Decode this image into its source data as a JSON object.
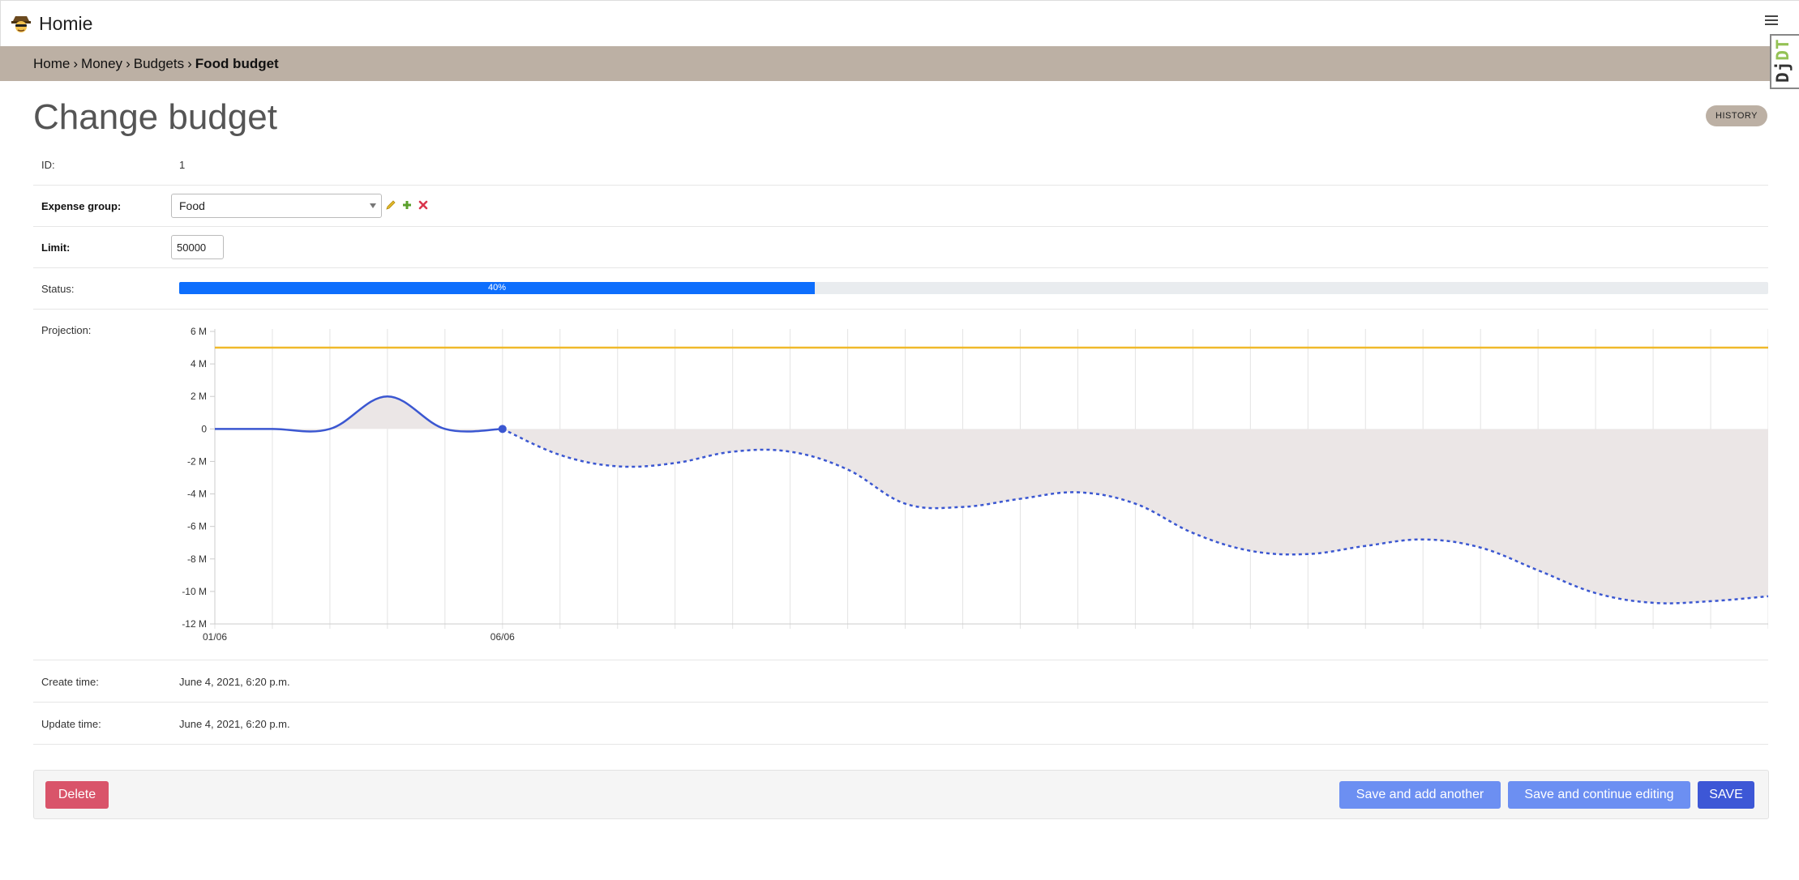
{
  "app": {
    "title": "Homie",
    "logo_icon": "detective-face-icon",
    "menu_icon": "hamburger-menu-icon"
  },
  "breadcrumb": {
    "items": [
      "Home",
      "Money",
      "Budgets"
    ],
    "current": "Food budget",
    "separator": "›"
  },
  "debug_toolbar": {
    "label_prefix": "Dj",
    "label_suffix": "DT"
  },
  "page": {
    "title": "Change budget",
    "history_button": "HISTORY"
  },
  "form": {
    "id": {
      "label": "ID:",
      "value": "1"
    },
    "expense_group": {
      "label": "Expense group:",
      "value": "Food",
      "icons": [
        "pencil-edit-icon",
        "plus-add-icon",
        "x-delete-icon"
      ]
    },
    "limit": {
      "label": "Limit:",
      "value": "50000"
    },
    "status": {
      "label": "Status:",
      "percent": 40,
      "text": "40%"
    },
    "projection": {
      "label": "Projection:"
    },
    "create_time": {
      "label": "Create time:",
      "value": "June 4, 2021, 6:20 p.m."
    },
    "update_time": {
      "label": "Update time:",
      "value": "June 4, 2021, 6:20 p.m."
    }
  },
  "actions": {
    "delete": "Delete",
    "save_add": "Save and add another",
    "save_continue": "Save and continue editing",
    "save": "SAVE"
  },
  "colors": {
    "breadcrumb_bg": "#bcb0a4",
    "progress": "#0d6efd",
    "line": "#3b57d1",
    "limit_line": "#f0b92b",
    "area": "#ebe6e6",
    "delete": "#d9546a",
    "secondary": "#6c8ff2",
    "primary": "#3d57d6"
  },
  "chart_data": {
    "type": "line",
    "x_days": [
      1,
      28
    ],
    "xticks": [
      {
        "day": 1,
        "label": "01/06"
      },
      {
        "day": 6,
        "label": "06/06"
      }
    ],
    "ylim": [
      -12,
      6
    ],
    "yticks": [
      6,
      4,
      2,
      0,
      -2,
      -4,
      -6,
      -8,
      -10,
      -12
    ],
    "ytick_labels": [
      "6 M",
      "4 M",
      "2 M",
      "0",
      "-2 M",
      "-4 M",
      "-6 M",
      "-8 M",
      "-10 M",
      "-12 M"
    ],
    "series": [
      {
        "style": "limit",
        "color": "#f0b92b",
        "x": [
          1,
          28
        ],
        "y": [
          5,
          5
        ]
      },
      {
        "style": "actual",
        "color": "#3b57d1",
        "x": [
          1,
          2,
          3,
          4,
          5,
          6
        ],
        "y": [
          0,
          0,
          0,
          2,
          0,
          0
        ]
      },
      {
        "style": "projection",
        "color": "#3b57d1",
        "x": [
          6,
          7,
          8,
          9,
          10,
          11,
          12,
          13,
          14,
          15,
          16,
          17,
          18,
          19,
          20,
          21,
          22,
          23,
          24,
          25,
          26,
          27,
          28
        ],
        "y": [
          0,
          -1.6,
          -2.3,
          -2.1,
          -1.4,
          -1.4,
          -2.5,
          -4.6,
          -4.8,
          -4.3,
          -3.9,
          -4.6,
          -6.4,
          -7.5,
          -7.7,
          -7.2,
          -6.8,
          -7.3,
          -8.7,
          -10.1,
          -10.7,
          -10.6,
          -10.3
        ]
      }
    ]
  }
}
